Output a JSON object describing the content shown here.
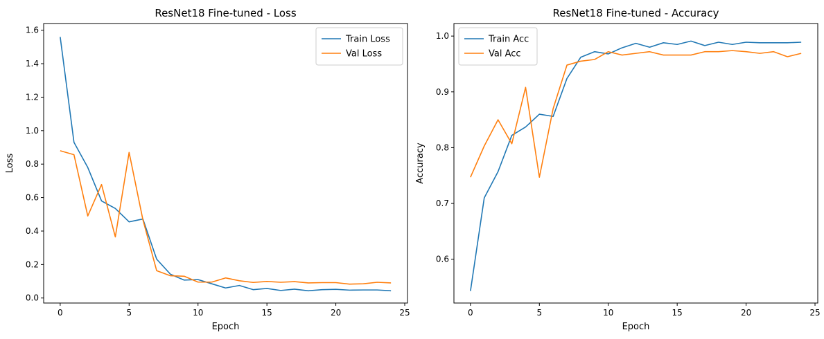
{
  "colors": {
    "train": "#1f77b4",
    "val": "#ff7f0e"
  },
  "chart_data": [
    {
      "type": "line",
      "title": "ResNet18 Fine-tuned - Loss",
      "xlabel": "Epoch",
      "ylabel": "Loss",
      "xlim": [
        -1.2,
        25.2
      ],
      "ylim": [
        -0.03,
        1.64
      ],
      "xticks": [
        0,
        5,
        10,
        15,
        20,
        25
      ],
      "yticks": [
        0.0,
        0.2,
        0.4,
        0.6,
        0.8,
        1.0,
        1.2,
        1.4,
        1.6
      ],
      "ytick_decimals": 1,
      "legend": "top-right",
      "x": [
        0,
        1,
        2,
        3,
        4,
        5,
        6,
        7,
        8,
        9,
        10,
        11,
        12,
        13,
        14,
        15,
        16,
        17,
        18,
        19,
        20,
        21,
        22,
        23,
        24
      ],
      "series": [
        {
          "name": "Train Loss",
          "color_key": "train",
          "values": [
            1.56,
            0.93,
            0.78,
            0.58,
            0.535,
            0.455,
            0.472,
            0.232,
            0.142,
            0.107,
            0.11,
            0.085,
            0.06,
            0.075,
            0.05,
            0.057,
            0.045,
            0.053,
            0.043,
            0.05,
            0.052,
            0.047,
            0.048,
            0.048,
            0.043
          ]
        },
        {
          "name": "Val Loss",
          "color_key": "val",
          "values": [
            0.88,
            0.856,
            0.49,
            0.678,
            0.365,
            0.87,
            0.468,
            0.163,
            0.133,
            0.13,
            0.095,
            0.095,
            0.12,
            0.103,
            0.093,
            0.099,
            0.094,
            0.098,
            0.09,
            0.092,
            0.092,
            0.083,
            0.085,
            0.094,
            0.09
          ]
        }
      ]
    },
    {
      "type": "line",
      "title": "ResNet18 Fine-tuned - Accuracy",
      "xlabel": "Epoch",
      "ylabel": "Accuracy",
      "xlim": [
        -1.2,
        25.2
      ],
      "ylim": [
        0.5215,
        1.0225
      ],
      "xticks": [
        0,
        5,
        10,
        15,
        20,
        25
      ],
      "yticks": [
        0.6,
        0.7,
        0.8,
        0.9,
        1.0
      ],
      "ytick_decimals": 1,
      "legend": "top-left",
      "x": [
        0,
        1,
        2,
        3,
        4,
        5,
        6,
        7,
        8,
        9,
        10,
        11,
        12,
        13,
        14,
        15,
        16,
        17,
        18,
        19,
        20,
        21,
        22,
        23,
        24
      ],
      "series": [
        {
          "name": "Train Acc",
          "color_key": "train",
          "values": [
            0.543,
            0.71,
            0.757,
            0.822,
            0.837,
            0.86,
            0.856,
            0.924,
            0.962,
            0.972,
            0.968,
            0.979,
            0.987,
            0.98,
            0.988,
            0.985,
            0.991,
            0.983,
            0.989,
            0.985,
            0.989,
            0.988,
            0.988,
            0.988,
            0.989
          ]
        },
        {
          "name": "Val Acc",
          "color_key": "val",
          "values": [
            0.747,
            0.803,
            0.85,
            0.807,
            0.908,
            0.747,
            0.87,
            0.948,
            0.955,
            0.958,
            0.972,
            0.966,
            0.969,
            0.972,
            0.966,
            0.966,
            0.966,
            0.972,
            0.972,
            0.974,
            0.972,
            0.969,
            0.972,
            0.963,
            0.969
          ]
        }
      ]
    }
  ]
}
